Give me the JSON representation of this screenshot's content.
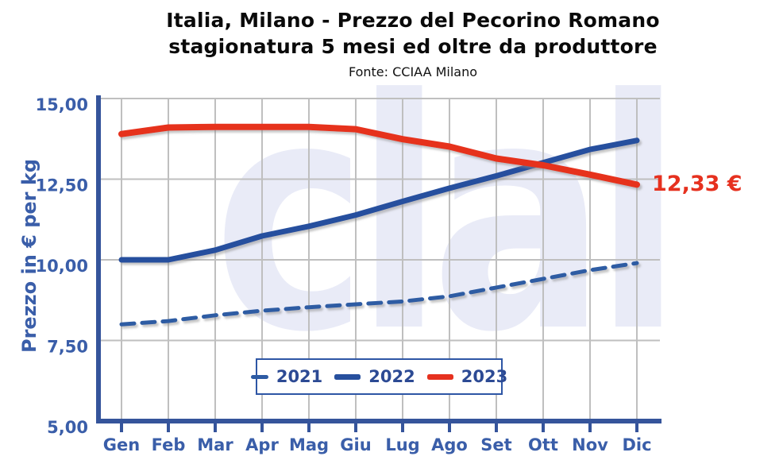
{
  "title": {
    "line1": "Italia, Milano - Prezzo del Pecorino Romano",
    "line2": "stagionatura 5 mesi ed oltre da produttore",
    "source": "Fonte: CCIAA Milano"
  },
  "watermark": "clal",
  "annotation": {
    "text": "12,33 €"
  },
  "y_axis": {
    "title": "Prezzo in € per kg",
    "tick_labels": [
      "15,00",
      "12,50",
      "10,00",
      "7,50",
      "5,00"
    ],
    "tick_values": [
      15,
      12.5,
      10,
      7.5,
      5
    ]
  },
  "legend": {
    "items": [
      {
        "label": "2021"
      },
      {
        "label": "2022"
      },
      {
        "label": "2023"
      }
    ]
  },
  "colors": {
    "grid": "#bfbfbf",
    "axis": "#35549b",
    "tick_text": "#3a5ea9",
    "legend_text": "#2c4a94",
    "annotation_red": "#e6311f",
    "watermark": "#e9ebf7",
    "series_2021": "#2d5ba3",
    "series_2022": "#27509e",
    "series_2023": "#e6311f"
  },
  "chart_data": {
    "type": "line",
    "title": "Italia, Milano - Prezzo del Pecorino Romano stagionatura 5 mesi ed oltre da produttore",
    "subtitle": "Fonte: CCIAA Milano",
    "xlabel": "",
    "ylabel": "Prezzo in € per kg",
    "ylim": [
      5,
      15
    ],
    "grid": true,
    "legend_position": "inside-bottom-center",
    "categories": [
      "Gen",
      "Feb",
      "Mar",
      "Apr",
      "Mag",
      "Giu",
      "Lug",
      "Ago",
      "Set",
      "Ott",
      "Nov",
      "Dic"
    ],
    "series": [
      {
        "name": "2021",
        "color": "#2d5ba3",
        "dashed": true,
        "values": [
          8.0,
          8.1,
          8.28,
          8.42,
          8.53,
          8.62,
          8.71,
          8.87,
          9.14,
          9.41,
          9.68,
          9.9
        ]
      },
      {
        "name": "2022",
        "color": "#27509e",
        "dashed": false,
        "values": [
          10.0,
          10.0,
          10.3,
          10.74,
          11.04,
          11.39,
          11.81,
          12.22,
          12.6,
          13.01,
          13.42,
          13.7
        ]
      },
      {
        "name": "2023",
        "color": "#e6311f",
        "dashed": false,
        "values": [
          13.9,
          14.1,
          14.12,
          14.12,
          14.12,
          14.05,
          13.74,
          13.51,
          13.14,
          12.93,
          12.64,
          12.33
        ]
      }
    ],
    "annotations": [
      {
        "series": "2023",
        "point": "Dic",
        "text": "12,33 €"
      }
    ]
  }
}
